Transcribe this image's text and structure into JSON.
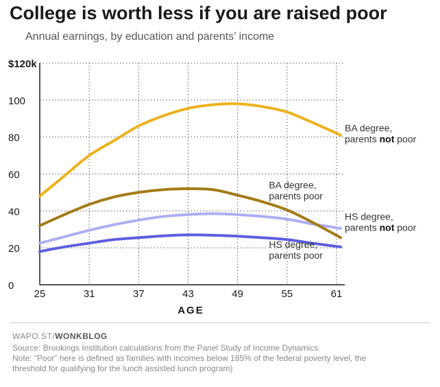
{
  "header": {
    "title": "College is worth less if you are raised poor",
    "subtitle": "Annual earnings, by education and parents’ income"
  },
  "footer": {
    "credit_prefix": "WAPO.ST/",
    "credit_brand": "WONKBLOG",
    "source": "Source: Brookings Institution calculations from the Panel Study of Income Dynamics.",
    "note_line1": "Note: “Poor” here is defined as families with incomes below 185% of the federal poverty level, the",
    "note_line2": "threshold for qualifying for the lunch assisted lunch program)"
  },
  "chart_data": {
    "type": "line",
    "title": "College is worth less if you are raised poor",
    "subtitle": "Annual earnings, by education and parents’ income",
    "xlabel": "AGE",
    "ylabel": "",
    "xlim": [
      25,
      62
    ],
    "ylim": [
      0,
      120
    ],
    "x_ticks": [
      25,
      31,
      37,
      43,
      49,
      55,
      61
    ],
    "y_ticks": [
      0,
      20,
      40,
      60,
      80,
      100,
      120
    ],
    "y_tick_labels": [
      "0",
      "20",
      "40",
      "60",
      "80",
      "100",
      "$120k"
    ],
    "grid": true,
    "series": [
      {
        "label_line1": "BA degree,",
        "label_line2_pre": "parents ",
        "label_line2_bold": "not",
        "label_line2_post": " poor",
        "color": "#ECB21E",
        "label_x": 62,
        "label_y": 82,
        "x": [
          25,
          28,
          31,
          34,
          37,
          40,
          43,
          46,
          49,
          52,
          55,
          58,
          61.5
        ],
        "values": [
          48,
          59,
          70,
          78,
          86,
          91.5,
          95.5,
          97.5,
          98,
          96.5,
          93.5,
          88,
          81
        ]
      },
      {
        "label_line1": "BA degree,",
        "label_line2_pre": "parents poor",
        "label_line2_bold": "",
        "label_line2_post": "",
        "color": "#A37C17",
        "label_x": 52.8,
        "label_y": 51,
        "x": [
          25,
          28,
          31,
          34,
          37,
          40,
          43,
          46,
          49,
          52,
          55,
          58,
          61.5
        ],
        "values": [
          32,
          38,
          43.5,
          47.5,
          50,
          51.5,
          52,
          51.5,
          48.5,
          45,
          40.5,
          34,
          25.5
        ]
      },
      {
        "label_line1": "HS degree,",
        "label_line2_pre": "parents ",
        "label_line2_bold": "not",
        "label_line2_post": " poor",
        "color": "#AEAEF2",
        "label_x": 62,
        "label_y": 34,
        "x": [
          25,
          28,
          31,
          34,
          37,
          40,
          43,
          46,
          49,
          52,
          55,
          58,
          61.5
        ],
        "values": [
          22.5,
          26,
          29.5,
          32.5,
          35,
          37,
          38,
          38.5,
          38,
          37,
          35.5,
          33,
          30.5
        ]
      },
      {
        "label_line1": "HS degree,",
        "label_line2_pre": "parents poor",
        "label_line2_bold": "",
        "label_line2_post": "",
        "color": "#5E5EE0",
        "label_x": 52.8,
        "label_y": 19,
        "x": [
          25,
          28,
          31,
          34,
          37,
          40,
          43,
          46,
          49,
          52,
          55,
          58,
          61.5
        ],
        "values": [
          18,
          20.5,
          22.5,
          24.5,
          25.5,
          26.5,
          27,
          26.8,
          26.3,
          25.5,
          24.5,
          22.5,
          20.5
        ]
      }
    ]
  }
}
